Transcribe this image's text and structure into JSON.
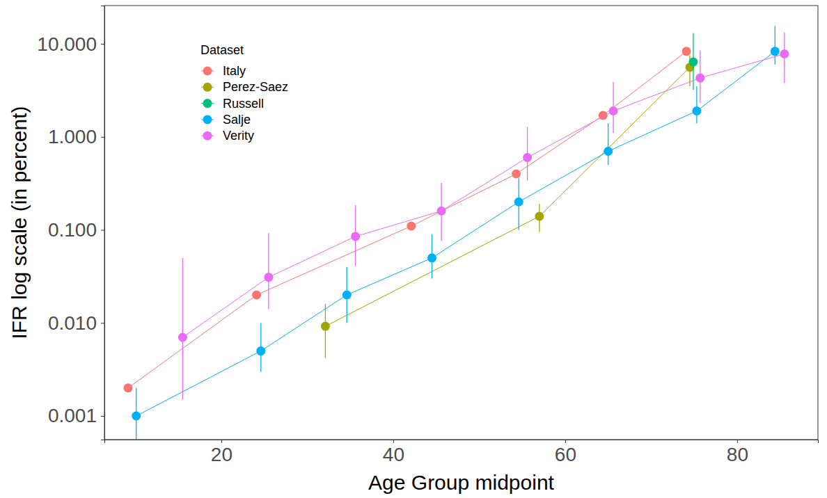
{
  "chart_data": {
    "type": "line",
    "x_label": "Age Group midpoint",
    "y_label": "IFR log scale (in percent)",
    "legend_title": "Dataset",
    "legend": "upper left",
    "log": "y",
    "grid": false,
    "marker": "circle",
    "xlim": [
      6.4,
      89.4
    ],
    "xticks": [
      20,
      40,
      60,
      80
    ],
    "ylim": [
      0.000557,
      25.8
    ],
    "yticks": [
      {
        "value": 0.001,
        "label": "0.001"
      },
      {
        "value": 0.01,
        "label": "0.010"
      },
      {
        "value": 0.1,
        "label": "0.100"
      },
      {
        "value": 1,
        "label": "1.000"
      },
      {
        "value": 10,
        "label": "10.000"
      }
    ],
    "series": [
      {
        "name": "Italy",
        "color": "#F8766D",
        "x": [
          9.15,
          24.1,
          42.1,
          54.3,
          64.4,
          74.1
        ],
        "values": [
          0.002,
          0.02,
          0.11,
          0.4,
          1.7,
          8.3
        ]
      },
      {
        "name": "Perez-Saez",
        "color": "#A3A500",
        "x": [
          32.1,
          57.0,
          74.5
        ],
        "values": [
          0.0092,
          0.14,
          5.6
        ],
        "error_low": [
          0.0042,
          0.095,
          3.5
        ],
        "error_high": [
          0.016,
          0.19,
          7.5
        ]
      },
      {
        "name": "Russell",
        "color": "#00BF7D",
        "x": [
          74.9
        ],
        "values": [
          6.4
        ],
        "error_low": [
          3.2
        ],
        "error_high": [
          13
        ]
      },
      {
        "name": "Salje",
        "color": "#00B0F6",
        "x": [
          10.1,
          24.6,
          34.6,
          44.5,
          54.6,
          65.0,
          75.3,
          84.4
        ],
        "values": [
          0.001,
          0.005,
          0.02,
          0.05,
          0.2,
          0.7,
          1.9,
          8.3
        ],
        "error_low": [
          0.0004,
          0.003,
          0.01,
          0.03,
          0.1,
          0.5,
          1.4,
          6
        ],
        "error_high": [
          0.002,
          0.01,
          0.04,
          0.09,
          0.36,
          1.4,
          3.5,
          15.5
        ]
      },
      {
        "name": "Verity",
        "color": "#E76BF3",
        "x": [
          15.5,
          25.5,
          35.6,
          45.6,
          55.6,
          65.6,
          75.7,
          85.5
        ],
        "values": [
          0.007,
          0.031,
          0.085,
          0.16,
          0.6,
          1.9,
          4.3,
          7.8
        ],
        "error_low": [
          0.0015,
          0.014,
          0.041,
          0.076,
          0.34,
          1.1,
          2.3,
          3.8
        ],
        "error_high": [
          0.05,
          0.092,
          0.185,
          0.32,
          1.28,
          3.9,
          8.5,
          13.3
        ]
      }
    ]
  }
}
